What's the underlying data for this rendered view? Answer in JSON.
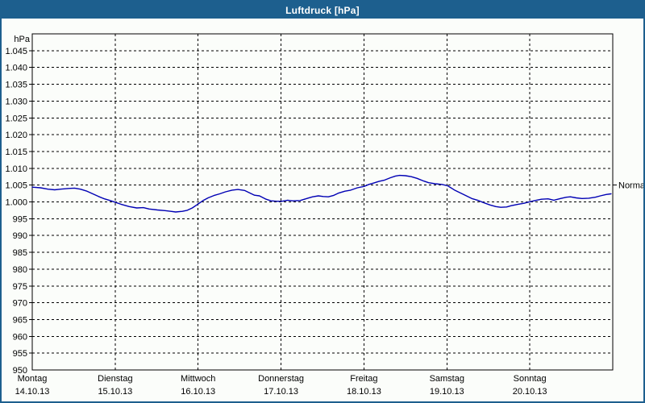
{
  "window": {
    "title": "Luftdruck [hPa]"
  },
  "colors": {
    "titlebar": "#1d5f8e",
    "border": "#1d5f8e",
    "background": "#fbfdfa",
    "line": "#0000b4",
    "grid": "#000000",
    "text": "#000000"
  },
  "chart_data": {
    "type": "line",
    "title": "Luftdruck [hPa]",
    "ylabel": "hPa",
    "ylim": [
      950,
      1050
    ],
    "ytick_step": 5,
    "grid": "dashed",
    "legend_position": "none",
    "yticks": [
      {
        "v": 1045,
        "label": "1.045"
      },
      {
        "v": 1040,
        "label": "1.040"
      },
      {
        "v": 1035,
        "label": "1.035"
      },
      {
        "v": 1030,
        "label": "1.030"
      },
      {
        "v": 1025,
        "label": "1.025"
      },
      {
        "v": 1020,
        "label": "1.020"
      },
      {
        "v": 1015,
        "label": "1.015"
      },
      {
        "v": 1010,
        "label": "1.010"
      },
      {
        "v": 1005,
        "label": "1.005"
      },
      {
        "v": 1000,
        "label": "1.000"
      },
      {
        "v": 995,
        "label": "995"
      },
      {
        "v": 990,
        "label": "990"
      },
      {
        "v": 985,
        "label": "985"
      },
      {
        "v": 980,
        "label": "980"
      },
      {
        "v": 975,
        "label": "975"
      },
      {
        "v": 970,
        "label": "970"
      },
      {
        "v": 965,
        "label": "965"
      },
      {
        "v": 960,
        "label": "960"
      },
      {
        "v": 955,
        "label": "955"
      },
      {
        "v": 950,
        "label": "950"
      }
    ],
    "x_days": [
      {
        "name": "Montag",
        "date": "14.10.13"
      },
      {
        "name": "Dienstag",
        "date": "15.10.13"
      },
      {
        "name": "Mittwoch",
        "date": "16.10.13"
      },
      {
        "name": "Donnerstag",
        "date": "17.10.13"
      },
      {
        "name": "Freitag",
        "date": "18.10.13"
      },
      {
        "name": "Samstag",
        "date": "19.10.13"
      },
      {
        "name": "Sonntag",
        "date": "20.10.13"
      }
    ],
    "x_range_days": [
      0,
      7
    ],
    "normal": {
      "label": "Normal",
      "value": 1005
    },
    "series": [
      {
        "name": "Luftdruck",
        "color": "#0000b4",
        "points": [
          [
            0.0,
            1004.4
          ],
          [
            0.1,
            1004.2
          ],
          [
            0.19,
            1003.8
          ],
          [
            0.27,
            1003.6
          ],
          [
            0.34,
            1003.8
          ],
          [
            0.44,
            1004.0
          ],
          [
            0.51,
            1004.1
          ],
          [
            0.58,
            1003.8
          ],
          [
            0.66,
            1003.2
          ],
          [
            0.73,
            1002.4
          ],
          [
            0.8,
            1001.6
          ],
          [
            0.87,
            1000.9
          ],
          [
            0.94,
            1000.4
          ],
          [
            1.0,
            999.9
          ],
          [
            1.07,
            999.3
          ],
          [
            1.17,
            998.6
          ],
          [
            1.26,
            998.2
          ],
          [
            1.34,
            998.3
          ],
          [
            1.41,
            997.9
          ],
          [
            1.51,
            997.6
          ],
          [
            1.6,
            997.4
          ],
          [
            1.67,
            997.2
          ],
          [
            1.73,
            997.0
          ],
          [
            1.81,
            997.2
          ],
          [
            1.87,
            997.5
          ],
          [
            1.93,
            998.2
          ],
          [
            1.99,
            999.2
          ],
          [
            2.06,
            1000.4
          ],
          [
            2.12,
            1001.2
          ],
          [
            2.19,
            1001.9
          ],
          [
            2.26,
            1002.4
          ],
          [
            2.33,
            1003.0
          ],
          [
            2.41,
            1003.5
          ],
          [
            2.48,
            1003.7
          ],
          [
            2.56,
            1003.4
          ],
          [
            2.63,
            1002.6
          ],
          [
            2.68,
            1002.0
          ],
          [
            2.74,
            1001.8
          ],
          [
            2.82,
            1000.8
          ],
          [
            2.88,
            1000.3
          ],
          [
            2.95,
            1000.2
          ],
          [
            3.01,
            1000.2
          ],
          [
            3.08,
            1000.5
          ],
          [
            3.14,
            1000.3
          ],
          [
            3.23,
            1000.4
          ],
          [
            3.31,
            1001.0
          ],
          [
            3.38,
            1001.5
          ],
          [
            3.45,
            1001.8
          ],
          [
            3.51,
            1001.6
          ],
          [
            3.57,
            1001.5
          ],
          [
            3.63,
            1001.9
          ],
          [
            3.69,
            1002.6
          ],
          [
            3.77,
            1003.2
          ],
          [
            3.84,
            1003.5
          ],
          [
            3.92,
            1004.2
          ],
          [
            4.0,
            1004.6
          ],
          [
            4.06,
            1005.2
          ],
          [
            4.13,
            1005.7
          ],
          [
            4.18,
            1006.1
          ],
          [
            4.25,
            1006.5
          ],
          [
            4.32,
            1007.2
          ],
          [
            4.38,
            1007.7
          ],
          [
            4.43,
            1007.9
          ],
          [
            4.5,
            1007.8
          ],
          [
            4.57,
            1007.5
          ],
          [
            4.64,
            1007.0
          ],
          [
            4.72,
            1006.2
          ],
          [
            4.78,
            1005.7
          ],
          [
            4.86,
            1005.4
          ],
          [
            4.94,
            1005.2
          ],
          [
            5.01,
            1004.8
          ],
          [
            5.1,
            1003.4
          ],
          [
            5.2,
            1002.2
          ],
          [
            5.3,
            1001.0
          ],
          [
            5.37,
            1000.5
          ],
          [
            5.44,
            999.8
          ],
          [
            5.52,
            999.1
          ],
          [
            5.59,
            998.6
          ],
          [
            5.65,
            998.4
          ],
          [
            5.72,
            998.5
          ],
          [
            5.78,
            998.9
          ],
          [
            5.86,
            999.3
          ],
          [
            5.93,
            999.6
          ],
          [
            6.01,
            1000.1
          ],
          [
            6.08,
            1000.5
          ],
          [
            6.14,
            1000.8
          ],
          [
            6.22,
            1000.9
          ],
          [
            6.29,
            1000.5
          ],
          [
            6.37,
            1001.0
          ],
          [
            6.44,
            1001.4
          ],
          [
            6.49,
            1001.5
          ],
          [
            6.56,
            1001.2
          ],
          [
            6.63,
            1001.0
          ],
          [
            6.71,
            1001.1
          ],
          [
            6.79,
            1001.4
          ],
          [
            6.85,
            1001.8
          ],
          [
            6.92,
            1002.2
          ],
          [
            6.98,
            1002.4
          ]
        ]
      }
    ]
  }
}
